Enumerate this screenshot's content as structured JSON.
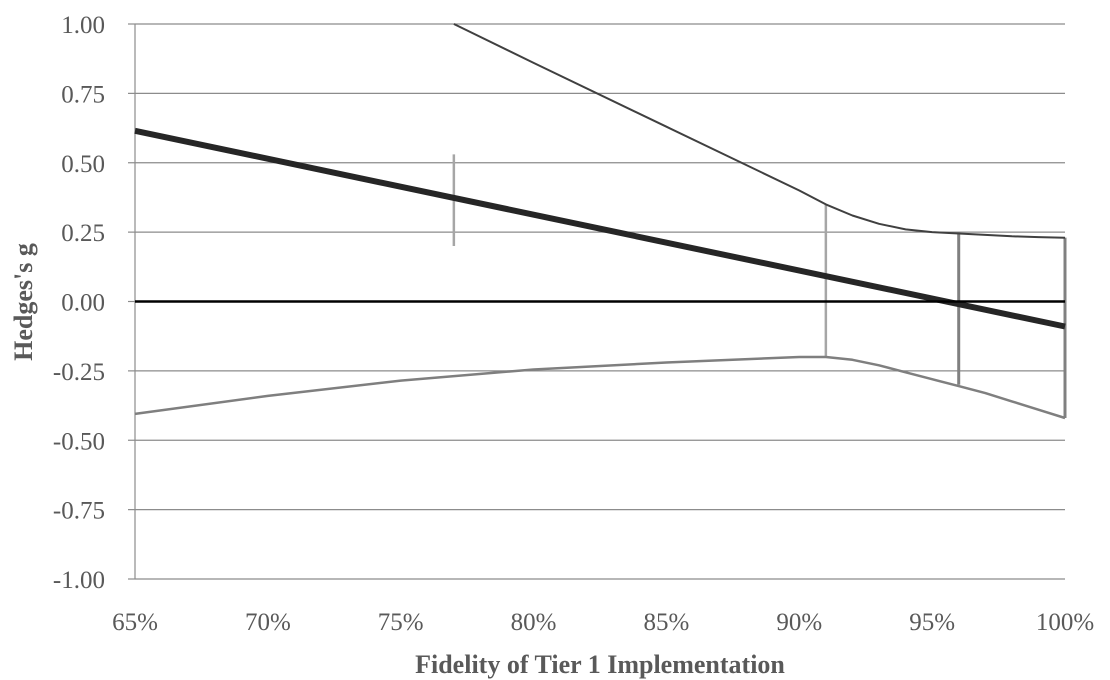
{
  "chart_data": {
    "type": "line",
    "title": "",
    "xlabel": "Fidelity of Tier 1 Implementation",
    "ylabel": "Hedges's g",
    "xlim": [
      65,
      100
    ],
    "ylim": [
      -1.0,
      1.0
    ],
    "x_ticks": [
      65,
      70,
      75,
      80,
      85,
      90,
      95,
      100
    ],
    "x_tick_labels": [
      "65%",
      "70%",
      "75%",
      "80%",
      "85%",
      "90%",
      "95%",
      "100%"
    ],
    "y_ticks": [
      -1.0,
      -0.75,
      -0.5,
      -0.25,
      0.0,
      0.25,
      0.5,
      0.75,
      1.0
    ],
    "y_tick_labels": [
      "-1.00",
      "-0.75",
      "-0.50",
      "-0.25",
      "0.00",
      "0.25",
      "0.50",
      "0.75",
      "1.00"
    ],
    "grid": "horizontal",
    "legend": "none",
    "series": [
      {
        "role": "upper-ci",
        "color": "#404040",
        "points": [
          [
            77,
            1.0
          ],
          [
            80,
            0.86
          ],
          [
            85,
            0.63
          ],
          [
            90,
            0.4
          ],
          [
            91,
            0.35
          ],
          [
            92,
            0.31
          ],
          [
            93,
            0.28
          ],
          [
            94,
            0.26
          ],
          [
            95,
            0.25
          ],
          [
            96,
            0.245
          ],
          [
            97,
            0.24
          ],
          [
            98,
            0.235
          ],
          [
            99,
            0.232
          ],
          [
            100,
            0.23
          ]
        ]
      },
      {
        "role": "estimate",
        "color": "#262626",
        "points": [
          [
            65,
            0.615
          ],
          [
            100,
            -0.09
          ]
        ]
      },
      {
        "role": "lower-ci",
        "color": "#7f7f7f",
        "points": [
          [
            65,
            -0.405
          ],
          [
            70,
            -0.34
          ],
          [
            75,
            -0.285
          ],
          [
            80,
            -0.245
          ],
          [
            85,
            -0.22
          ],
          [
            90,
            -0.2
          ],
          [
            91,
            -0.2
          ],
          [
            92,
            -0.21
          ],
          [
            93,
            -0.23
          ],
          [
            94,
            -0.255
          ],
          [
            95,
            -0.28
          ],
          [
            96,
            -0.305
          ],
          [
            97,
            -0.33
          ],
          [
            98,
            -0.36
          ],
          [
            99,
            -0.39
          ],
          [
            100,
            -0.42
          ]
        ]
      },
      {
        "role": "zero-line",
        "color": "#000000",
        "points": [
          [
            65,
            0.0
          ],
          [
            100,
            0.0
          ]
        ]
      }
    ],
    "vertical_markers": [
      {
        "x": 77,
        "y_low": 0.2,
        "y_high": 0.53,
        "color": "#a6a6a6"
      },
      {
        "x": 91,
        "y_low": -0.2,
        "y_high": 0.35,
        "color": "#a6a6a6"
      },
      {
        "x": 96,
        "y_low": -0.3,
        "y_high": 0.25,
        "color": "#808080"
      },
      {
        "x": 100,
        "y_low": -0.42,
        "y_high": 0.23,
        "color": "#808080"
      }
    ]
  }
}
